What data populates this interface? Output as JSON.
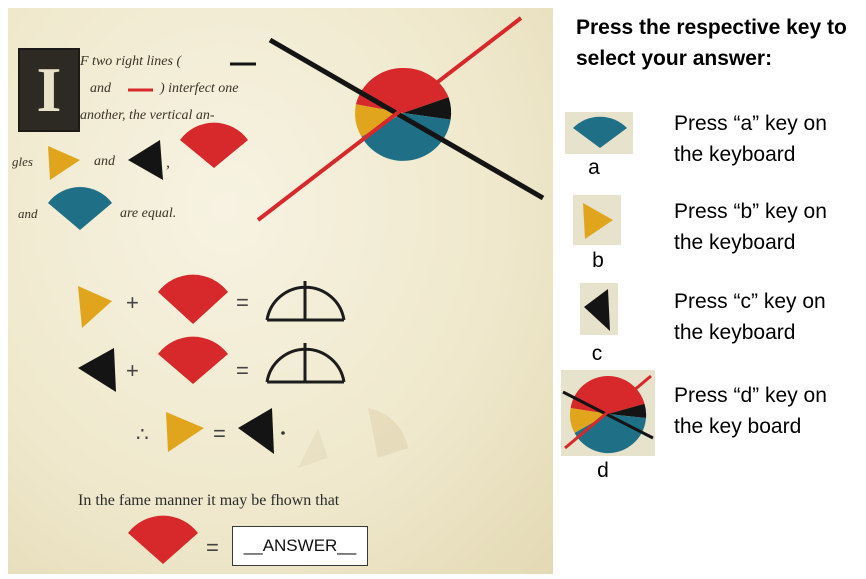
{
  "instructions": "Press the respective key to select your answer:",
  "page": {
    "line1": "F two right lines (",
    "line2_a": "and",
    "line2_b": ") interfect one",
    "line3": "another, the vertical an-",
    "line4_a": "gles",
    "line4_b": "and",
    "line5_a": "and",
    "line5_b": "are equal.",
    "dropcap": "I",
    "sample_text": "In the fame manner it may be fhown that",
    "answer_placeholder": "__ANSWER__",
    "therefore": "∴"
  },
  "options": [
    {
      "letter": "a",
      "text": "Press “a” key on the keyboard",
      "icon": "blue-sector-icon"
    },
    {
      "letter": "b",
      "text": "Press “b” key on the keyboard",
      "icon": "yellow-angle-icon"
    },
    {
      "letter": "c",
      "text": "Press “c” key on the keyboard",
      "icon": "black-angle-icon"
    },
    {
      "letter": "d",
      "text": "Press “d” key on the key board",
      "icon": "full-circle-diagram-icon"
    }
  ],
  "colors": {
    "red": "#d7282b",
    "yellow": "#e0a51c",
    "blue": "#1f6f86",
    "black": "#141414"
  }
}
